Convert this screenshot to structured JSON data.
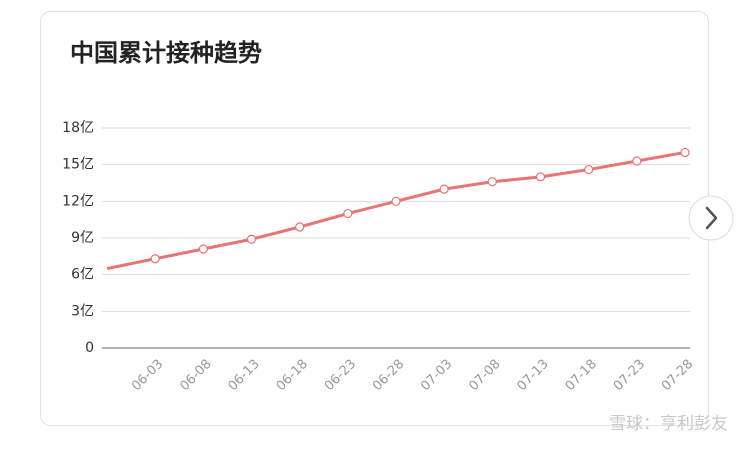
{
  "chart_data": {
    "type": "line",
    "title": "中国累计接种趋势",
    "categories": [
      null,
      "06-03",
      "06-08",
      "06-13",
      "06-18",
      "06-23",
      "06-28",
      "07-03",
      "07-08",
      "07-13",
      "07-18",
      "07-23",
      "07-28"
    ],
    "series": [
      {
        "name": "累计接种",
        "color": "#e87474",
        "values": [
          6.5,
          7.3,
          8.1,
          8.9,
          9.9,
          11.0,
          12.0,
          13.0,
          13.6,
          14.0,
          14.6,
          15.3,
          16.0
        ]
      }
    ],
    "ylim": [
      0,
      18
    ],
    "yticks": [
      0,
      {
        "value": 3,
        "label": "3亿"
      },
      {
        "value": 6,
        "label": "6亿"
      },
      {
        "value": 9,
        "label": "9亿"
      },
      {
        "value": 12,
        "label": "12亿"
      },
      {
        "value": 15,
        "label": "15亿"
      },
      {
        "value": 18,
        "label": "18亿"
      }
    ],
    "grid": true,
    "watermark": "雪球：亨利彭友"
  }
}
